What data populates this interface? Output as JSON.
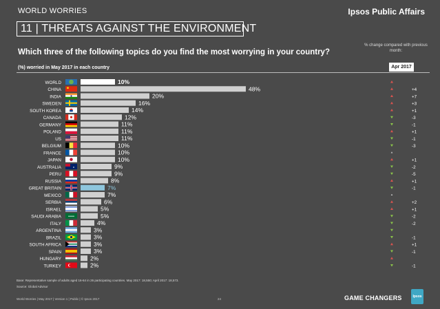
{
  "header": {
    "label": "WORLD WORRIES",
    "brand": "Ipsos Public Affairs"
  },
  "title": "11 | THREATS AGAINST THE ENVIRONMENT",
  "question": "Which three of the following topics do you find the most worrying in your country?",
  "change_note": "% change compared with previous month:",
  "subhead": "(%) worried in May 2017 in each country",
  "month_label": "Apr 2017",
  "colors": {
    "bar": "#d0d0d0",
    "highlight_bar": "#8ec6dd",
    "up": "#d9534f",
    "down": "#8bc34a",
    "neutral": "#cccccc"
  },
  "chart_data": {
    "type": "bar",
    "orientation": "horizontal",
    "categories": [
      "WORLD",
      "CHINA",
      "INDIA",
      "SWEDEN",
      "SOUTH KOREA",
      "CANADA",
      "GERMANY",
      "POLAND",
      "US",
      "BELGIUM",
      "FRANCE",
      "JAPAN",
      "AUSTRALIA",
      "PERU",
      "RUSSIA",
      "GREAT BRITAIN",
      "MEXICO",
      "SERBIA",
      "ISRAEL",
      "SAUDI ARABIA",
      "ITALY",
      "ARGENTINA",
      "BRAZIL",
      "SOUTH AFRICA",
      "SPAIN",
      "HUNGARY",
      "TURKEY"
    ],
    "values": [
      10,
      48,
      20,
      16,
      14,
      12,
      11,
      11,
      11,
      10,
      10,
      10,
      9,
      9,
      8,
      7,
      7,
      6,
      5,
      5,
      4,
      3,
      3,
      3,
      3,
      2,
      2
    ],
    "value_labels": [
      "10%",
      "48%",
      "20%",
      "16%",
      "14%",
      "12%",
      "11%",
      "11%",
      "11%",
      "10%",
      "10%",
      "10%",
      "9%",
      "9%",
      "8%",
      "7%",
      "7%",
      "6%",
      "5%",
      "5%",
      "4%",
      "3%",
      "3%",
      "3%",
      "3%",
      "2%",
      "2%"
    ],
    "highlight": [
      "GREAT BRITAIN"
    ],
    "change_direction": [
      "up",
      "up",
      "up",
      "up",
      "up",
      "down",
      "down",
      "up",
      "down",
      "down",
      "neutral",
      "up",
      "down",
      "down",
      "up",
      "down",
      "neutral",
      "up",
      "up",
      "down",
      "down",
      "down",
      "down",
      "up",
      "down",
      "up",
      "down"
    ],
    "change_labels": [
      "",
      "+4",
      "+7",
      "+3",
      "+1",
      "-3",
      "-1",
      "+1",
      "-1",
      "-3",
      "",
      "+1",
      "-2",
      "-5",
      "+1",
      "-1",
      "",
      "+2",
      "+1",
      "-2",
      "-2",
      "",
      "-1",
      "+1",
      "-1",
      "",
      "-1"
    ],
    "flags": [
      "globe",
      "china",
      "india",
      "sweden",
      "south-korea",
      "canada",
      "germany",
      "poland",
      "us",
      "belgium",
      "france",
      "japan",
      "australia",
      "peru",
      "russia",
      "great-britain",
      "mexico",
      "serbia",
      "israel",
      "saudi-arabia",
      "italy",
      "argentina",
      "brazil",
      "south-africa",
      "spain",
      "hungary",
      "turkey"
    ],
    "xlim": [
      0,
      50
    ]
  },
  "footer": {
    "base_note": "Base: Representative sample of adults aged 16-64 in 26 participating countries. May 2017: 18,550; April 2017: 18,573.",
    "source_note": "Source: Global Advisor",
    "left": "World Worries  |  May 2017  |  Version 1  |  Public  |  © Ipsos 2017",
    "page_number": "24",
    "tagline": "GAME CHANGERS",
    "logo": "Ipsos"
  }
}
